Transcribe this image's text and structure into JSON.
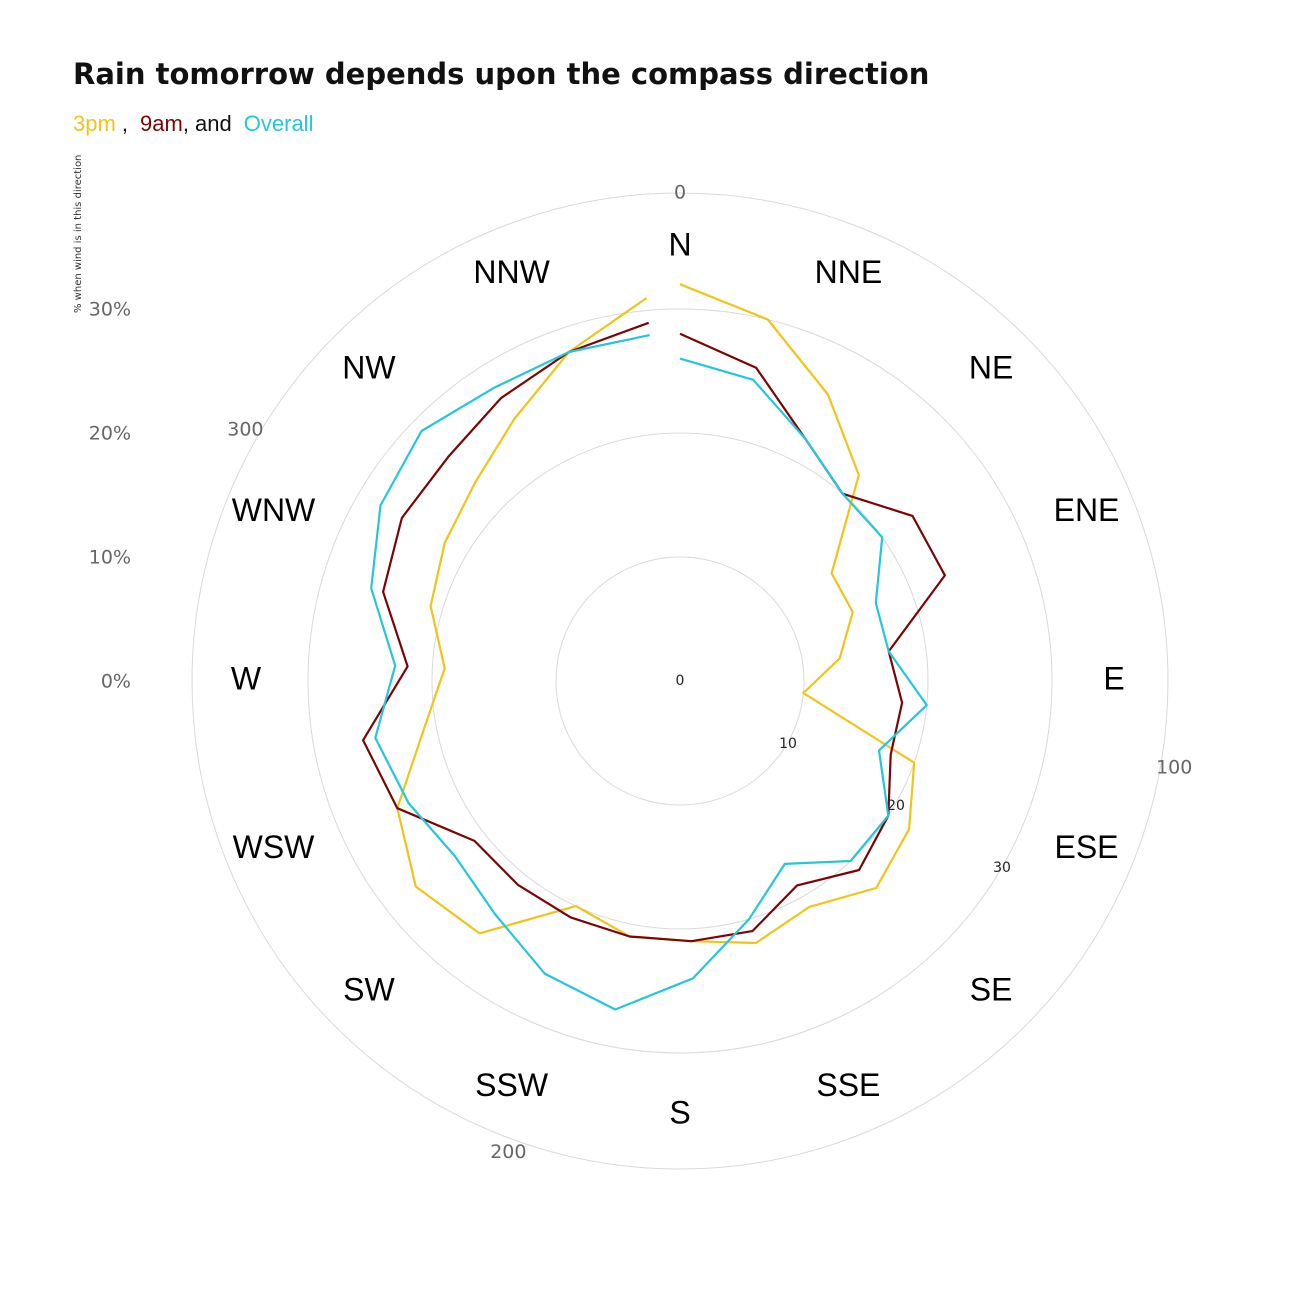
{
  "title": "Rain tomorrow depends upon the compass direction",
  "subtitle": {
    "s3pm": "3pm",
    "sep1": " ,",
    "s9am": "9am",
    "sep2": ", and",
    "overall": "Overall"
  },
  "colors": {
    "s3pm": "#f0c419",
    "s9am": "#7a0505",
    "overall": "#26c6da",
    "grid": "#d9d9d9"
  },
  "chart_data": {
    "type": "line",
    "coordinate": "polar",
    "ylabel": "% when wind is in this direction",
    "outer_labels": [
      "0%",
      "10%",
      "20%",
      "30%"
    ],
    "angle_labels": [
      "0",
      "100",
      "200",
      "300"
    ],
    "inner_labels": [
      "0",
      "10",
      "20",
      "30"
    ],
    "directions": [
      "N",
      "NNE",
      "NE",
      "ENE",
      "E",
      "ESE",
      "SE",
      "SSE",
      "S",
      "SSW",
      "SW",
      "WSW",
      "W",
      "WNW",
      "NW",
      "NNW"
    ],
    "radius_range": [
      0,
      30
    ],
    "series": [
      {
        "name": "3pm",
        "key": "s3pm",
        "values": [
          32,
          30,
          26,
          22,
          15,
          15,
          13,
          10,
          20,
          22,
          23,
          21,
          22,
          21,
          21,
          20,
          26,
          27,
          25,
          21,
          19,
          21,
          22,
          23,
          25,
          28,
          31
        ]
      },
      {
        "name": "9am",
        "key": "s9am",
        "values": [
          28,
          26,
          22,
          20,
          23,
          23,
          17,
          18,
          18,
          20,
          21,
          19,
          21,
          21,
          21,
          21,
          21,
          21,
          25,
          26,
          22,
          25,
          26,
          26,
          27,
          28,
          29
        ]
      },
      {
        "name": "Overall",
        "key": "overall",
        "values": [
          26,
          25,
          22,
          20,
          20,
          17,
          17,
          20,
          17,
          20,
          20,
          17,
          20,
          24,
          27,
          26,
          24,
          23,
          24,
          25,
          23,
          26,
          28,
          29,
          28,
          28,
          28
        ]
      }
    ]
  }
}
